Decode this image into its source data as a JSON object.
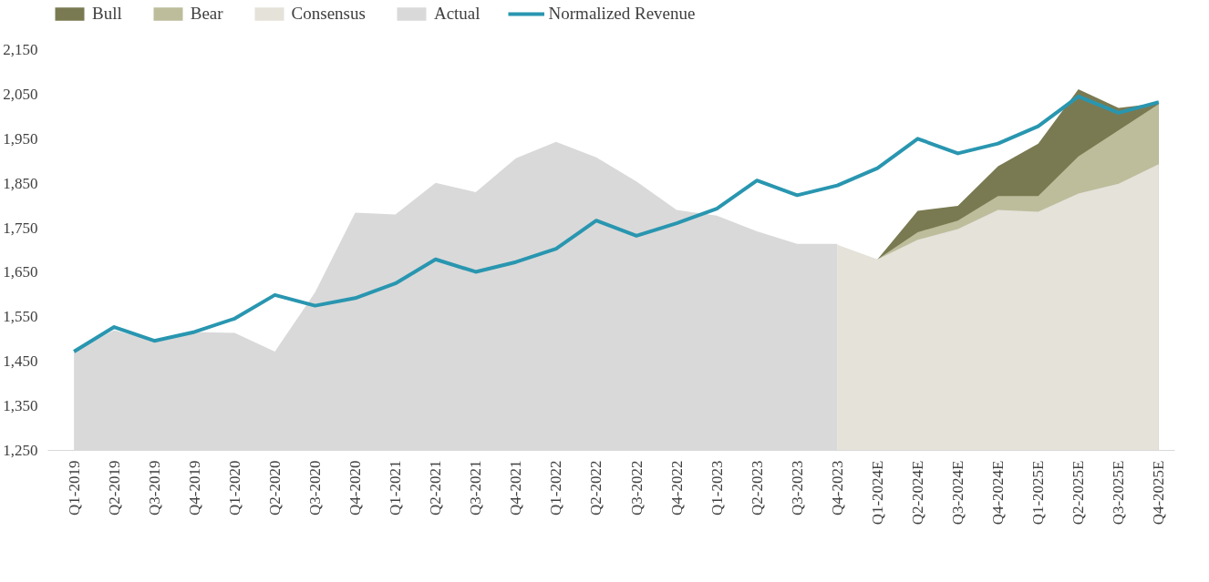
{
  "chart_data": {
    "type": "area",
    "categories": [
      "Q1-2019",
      "Q2-2019",
      "Q3-2019",
      "Q4-2019",
      "Q1-2020",
      "Q2-2020",
      "Q3-2020",
      "Q4-2020",
      "Q1-2021",
      "Q2-2021",
      "Q3-2021",
      "Q4-2021",
      "Q1-2022",
      "Q2-2022",
      "Q3-2022",
      "Q4-2022",
      "Q1-2023",
      "Q2-2023",
      "Q3-2023",
      "Q4-2023",
      "Q1-2024E",
      "Q2-2024E",
      "Q3-2024E",
      "Q4-2024E",
      "Q1-2025E",
      "Q2-2025E",
      "Q3-2025E",
      "Q4-2025E"
    ],
    "series": [
      {
        "name": "Bull",
        "color": "#7a7a52",
        "values": [
          null,
          null,
          null,
          null,
          null,
          null,
          null,
          null,
          null,
          null,
          null,
          null,
          null,
          null,
          null,
          null,
          null,
          null,
          null,
          null,
          1679,
          1788,
          1799,
          1888,
          1939,
          2061,
          2019,
          2030
        ]
      },
      {
        "name": "Bear",
        "color": "#bdbd9c",
        "values": [
          null,
          null,
          null,
          null,
          null,
          null,
          null,
          null,
          null,
          null,
          null,
          null,
          null,
          null,
          null,
          null,
          null,
          null,
          null,
          null,
          1679,
          1740,
          1766,
          1821,
          1821,
          1910,
          1969,
          2028
        ]
      },
      {
        "name": "Consensus",
        "color": "#e4e2d9",
        "values": [
          null,
          null,
          null,
          null,
          null,
          null,
          null,
          null,
          null,
          null,
          null,
          null,
          null,
          null,
          null,
          null,
          null,
          null,
          null,
          1712,
          1679,
          1723,
          1747,
          1790,
          1786,
          1827,
          1849,
          1893
        ]
      },
      {
        "name": "Actual",
        "color": "#d9d9d9",
        "values": [
          1472,
          1520,
          1496,
          1516,
          1514,
          1472,
          1605,
          1784,
          1780,
          1851,
          1830,
          1906,
          1943,
          1908,
          1854,
          1790,
          1777,
          1742,
          1714,
          1714,
          null,
          null,
          null,
          null,
          null,
          null,
          null,
          null
        ]
      },
      {
        "name": "Normalized Revenue",
        "type": "line",
        "color": "#2996b0",
        "values": [
          1472,
          1527,
          1496,
          1516,
          1546,
          1599,
          1575,
          1592,
          1625,
          1679,
          1651,
          1673,
          1703,
          1766,
          1732,
          1760,
          1793,
          1856,
          1823,
          1845,
          1884,
          1950,
          1917,
          1939,
          1978,
          2045,
          2008,
          2032
        ]
      }
    ],
    "ylim": [
      1250,
      2150
    ],
    "yticks": [
      {
        "value": 1250,
        "label": "1,250"
      },
      {
        "value": 1350,
        "label": "1,350"
      },
      {
        "value": 1450,
        "label": "1,450"
      },
      {
        "value": 1550,
        "label": "1,550"
      },
      {
        "value": 1650,
        "label": "1,650"
      },
      {
        "value": 1750,
        "label": "1,750"
      },
      {
        "value": 1850,
        "label": "1,850"
      },
      {
        "value": 1950,
        "label": "1,950"
      },
      {
        "value": 2050,
        "label": "2,050"
      },
      {
        "value": 2150,
        "label": "2,150"
      }
    ],
    "grid": false,
    "legend": "top left"
  }
}
